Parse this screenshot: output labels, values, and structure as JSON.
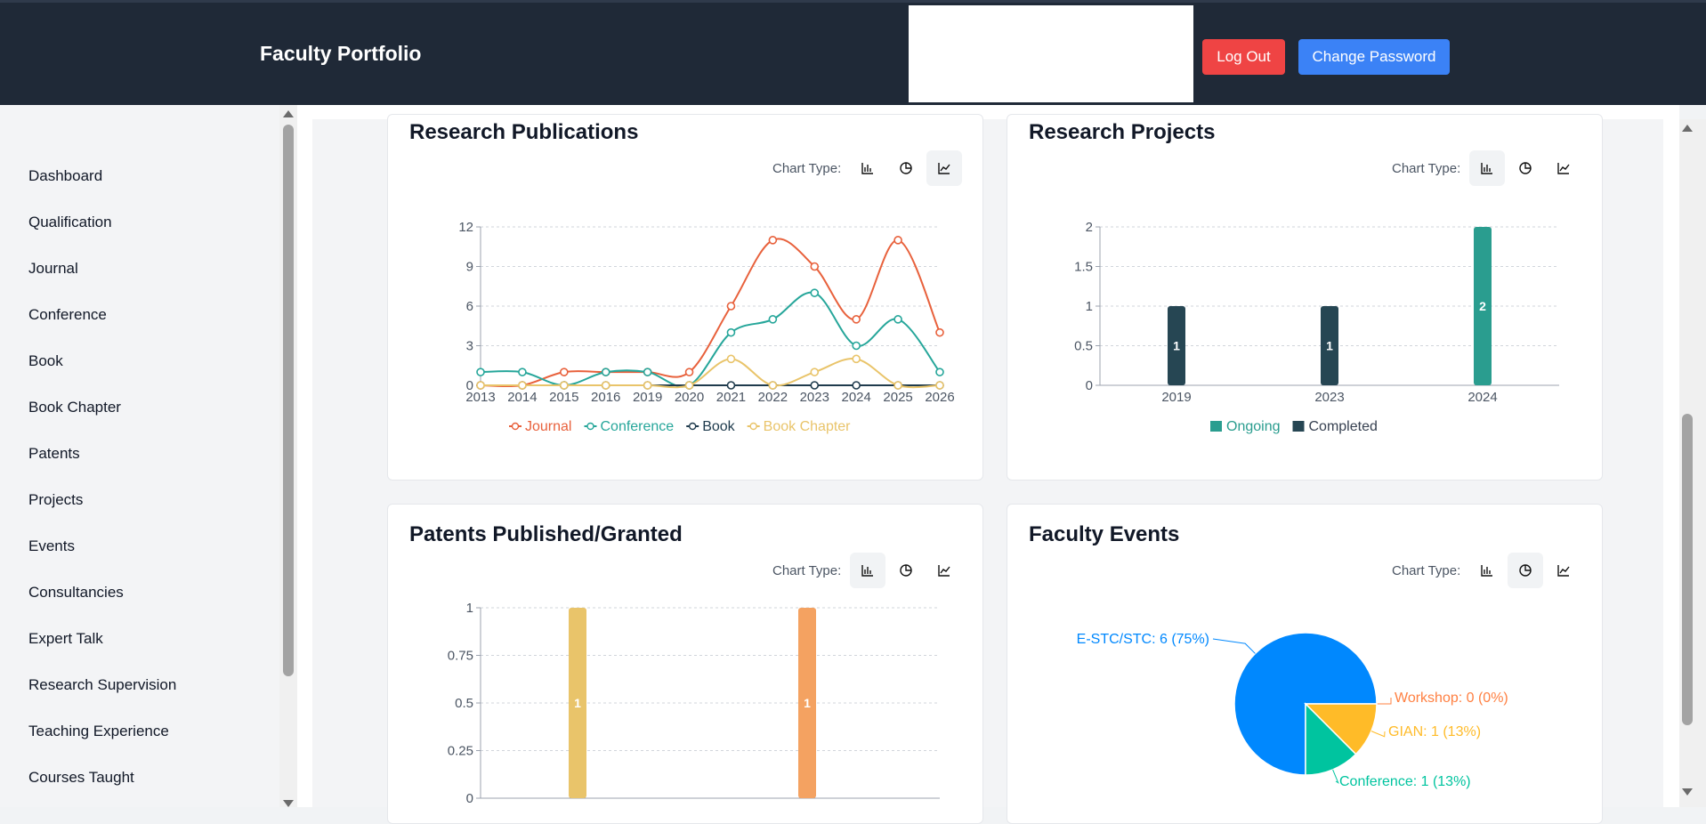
{
  "header": {
    "brand": "Faculty Portfolio",
    "logout_label": "Log Out",
    "change_password_label": "Change Password"
  },
  "sidebar": {
    "items": [
      {
        "label": "Dashboard"
      },
      {
        "label": "Qualification"
      },
      {
        "label": "Journal"
      },
      {
        "label": "Conference"
      },
      {
        "label": "Book"
      },
      {
        "label": "Book Chapter"
      },
      {
        "label": "Patents"
      },
      {
        "label": "Projects"
      },
      {
        "label": "Events"
      },
      {
        "label": "Consultancies"
      },
      {
        "label": "Expert Talk"
      },
      {
        "label": "Research Supervision"
      },
      {
        "label": "Teaching Experience"
      },
      {
        "label": "Courses Taught"
      }
    ]
  },
  "cards": {
    "publications": {
      "title": "Research Publications",
      "chart_type_label": "Chart Type:",
      "active": "line"
    },
    "projects": {
      "title": "Research Projects",
      "chart_type_label": "Chart Type:",
      "active": "bar"
    },
    "patents": {
      "title": "Patents Published/Granted",
      "chart_type_label": "Chart Type:",
      "active": "bar"
    },
    "events": {
      "title": "Faculty Events",
      "chart_type_label": "Chart Type:",
      "active": "pie"
    }
  },
  "colors": {
    "journal": "#e8613c",
    "conference": "#26a69a",
    "book": "#1f3b4d",
    "book_chapter": "#e9c46a",
    "ongoing": "#2a9d8f",
    "completed": "#264653",
    "patent_a": "#e9c46a",
    "patent_b": "#f4a261",
    "estc": "#0088fe",
    "workshop": "#ff8042",
    "gian": "#ffbb28",
    "event_conference": "#00c49f"
  },
  "chart_data": [
    {
      "type": "line",
      "categories": [
        "2013",
        "2014",
        "2015",
        "2016",
        "2019",
        "2020",
        "2021",
        "2022",
        "2023",
        "2024",
        "2025",
        "2026"
      ],
      "ylim": [
        0,
        12
      ],
      "yticks": [
        "0",
        "3",
        "6",
        "9",
        "12"
      ],
      "series": [
        {
          "name": "Journal",
          "values": [
            0,
            0,
            1,
            1,
            1,
            1,
            6,
            11,
            9,
            5,
            11,
            4
          ]
        },
        {
          "name": "Conference",
          "values": [
            1,
            1,
            0,
            1,
            1,
            0,
            4,
            5,
            7,
            3,
            5,
            1
          ]
        },
        {
          "name": "Book",
          "values": [
            0,
            0,
            0,
            0,
            0,
            0,
            0,
            0,
            0,
            0,
            0,
            0
          ]
        },
        {
          "name": "Book Chapter",
          "values": [
            0,
            0,
            0,
            0,
            0,
            0,
            2,
            0,
            1,
            2,
            0,
            0
          ]
        }
      ]
    },
    {
      "type": "bar",
      "categories": [
        "2019",
        "2023",
        "2024"
      ],
      "ylim": [
        0,
        2
      ],
      "yticks": [
        "0",
        "0.5",
        "1",
        "1.5",
        "2"
      ],
      "series": [
        {
          "name": "Ongoing",
          "values": [
            0,
            0,
            2
          ]
        },
        {
          "name": "Completed",
          "values": [
            1,
            1,
            0
          ]
        }
      ]
    },
    {
      "type": "bar",
      "categories": [
        "",
        ""
      ],
      "ylim": [
        0,
        1
      ],
      "yticks": [
        "0",
        "0.25",
        "0.5",
        "0.75",
        "1"
      ],
      "series": [
        {
          "values": [
            1,
            1
          ]
        }
      ]
    },
    {
      "type": "pie",
      "slices": [
        {
          "label": "E-STC/STC: 6 (75%)",
          "value": 6
        },
        {
          "label": "Workshop: 0 (0%)",
          "value": 0
        },
        {
          "label": "GIAN: 1 (13%)",
          "value": 1
        },
        {
          "label": "Conference: 1 (13%)",
          "value": 1
        }
      ]
    }
  ]
}
